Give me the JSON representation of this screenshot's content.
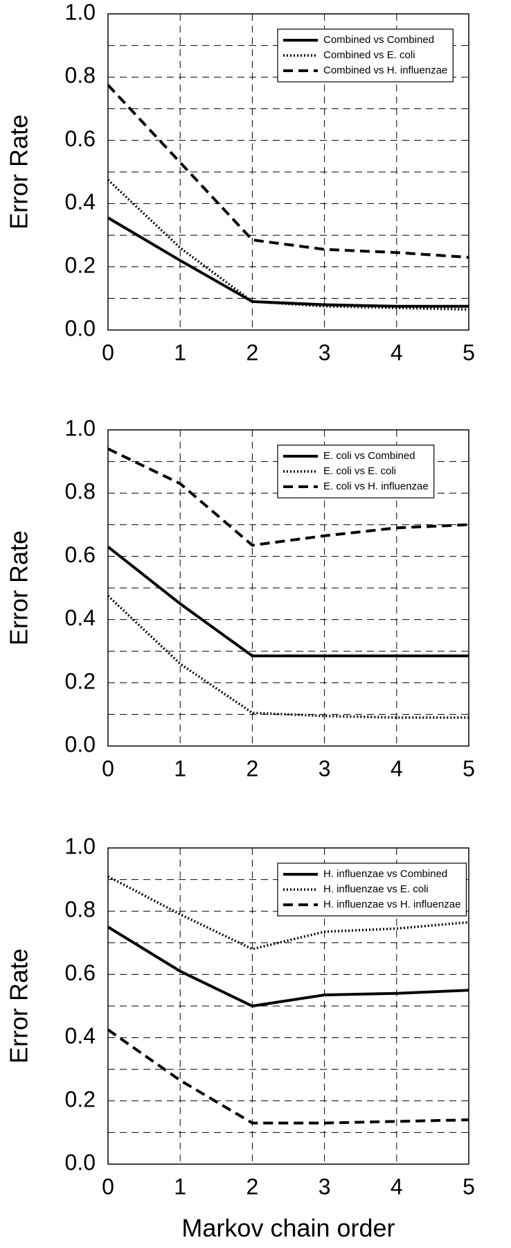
{
  "chart_data": [
    {
      "type": "line",
      "ylabel": "Error Rate",
      "x": [
        0,
        1,
        2,
        3,
        4,
        5
      ],
      "xlim": [
        0,
        5
      ],
      "xticks": [
        0,
        1,
        2,
        3,
        4,
        5
      ],
      "ylim": [
        0,
        1
      ],
      "yticks": [
        {
          "value": 0,
          "label": "0.0"
        },
        0.2,
        0.4,
        0.6,
        0.8,
        {
          "value": 1,
          "label": "1.0"
        }
      ],
      "yminor_ticks": [
        0.1,
        0.3,
        0.5,
        0.7,
        0.9
      ],
      "grid": true,
      "legend": "upper right",
      "series": [
        {
          "name": "Combined vs Combined",
          "color": "#000000",
          "dash": "solid",
          "values": [
            0.355,
            0.22,
            0.09,
            0.08,
            0.075,
            0.075
          ]
        },
        {
          "name": "Combined vs E. coli",
          "color": "#000000",
          "dash": "dotted",
          "values": [
            0.475,
            0.26,
            0.09,
            0.075,
            0.07,
            0.065
          ]
        },
        {
          "name": "Combined vs H. influenzae",
          "color": "#000000",
          "dash": "dashed",
          "values": [
            0.775,
            0.53,
            0.285,
            0.255,
            0.245,
            0.23
          ]
        }
      ]
    },
    {
      "type": "line",
      "ylabel": "Error Rate",
      "x": [
        0,
        1,
        2,
        3,
        4,
        5
      ],
      "xlim": [
        0,
        5
      ],
      "xticks": [
        0,
        1,
        2,
        3,
        4,
        5
      ],
      "ylim": [
        0,
        1
      ],
      "yticks": [
        {
          "value": 0,
          "label": "0.0"
        },
        0.2,
        0.4,
        0.6,
        0.8,
        {
          "value": 1,
          "label": "1.0"
        }
      ],
      "yminor_ticks": [
        0.1,
        0.3,
        0.5,
        0.7,
        0.9
      ],
      "grid": true,
      "legend": "upper right",
      "series": [
        {
          "name": "E. coli vs Combined",
          "color": "#000000",
          "dash": "solid",
          "values": [
            0.63,
            0.45,
            0.285,
            0.285,
            0.285,
            0.285
          ]
        },
        {
          "name": "E. coli vs E. coli",
          "color": "#000000",
          "dash": "dotted",
          "values": [
            0.475,
            0.26,
            0.105,
            0.095,
            0.09,
            0.09
          ]
        },
        {
          "name": "E. coli vs H. influenzae",
          "color": "#000000",
          "dash": "dashed",
          "values": [
            0.94,
            0.83,
            0.635,
            0.665,
            0.69,
            0.7
          ]
        }
      ]
    },
    {
      "type": "line",
      "ylabel": "Error Rate",
      "xlabel": "Markov chain order",
      "x": [
        0,
        1,
        2,
        3,
        4,
        5
      ],
      "xlim": [
        0,
        5
      ],
      "xticks": [
        0,
        1,
        2,
        3,
        4,
        5
      ],
      "ylim": [
        0,
        1
      ],
      "yticks": [
        {
          "value": 0,
          "label": "0.0"
        },
        0.2,
        0.4,
        0.6,
        0.8,
        {
          "value": 1,
          "label": "1.0"
        }
      ],
      "yminor_ticks": [
        0.1,
        0.3,
        0.5,
        0.7,
        0.9
      ],
      "grid": true,
      "legend": "upper right",
      "series": [
        {
          "name": "H. influenzae vs Combined",
          "color": "#000000",
          "dash": "solid",
          "values": [
            0.75,
            0.61,
            0.5,
            0.535,
            0.54,
            0.55
          ]
        },
        {
          "name": "H. influenzae vs E. coli",
          "color": "#000000",
          "dash": "dotted",
          "values": [
            0.91,
            0.79,
            0.68,
            0.735,
            0.745,
            0.765
          ]
        },
        {
          "name": "H. influenzae vs H. influenzae",
          "color": "#000000",
          "dash": "dashed",
          "values": [
            0.425,
            0.265,
            0.13,
            0.13,
            0.135,
            0.14
          ]
        }
      ]
    }
  ]
}
